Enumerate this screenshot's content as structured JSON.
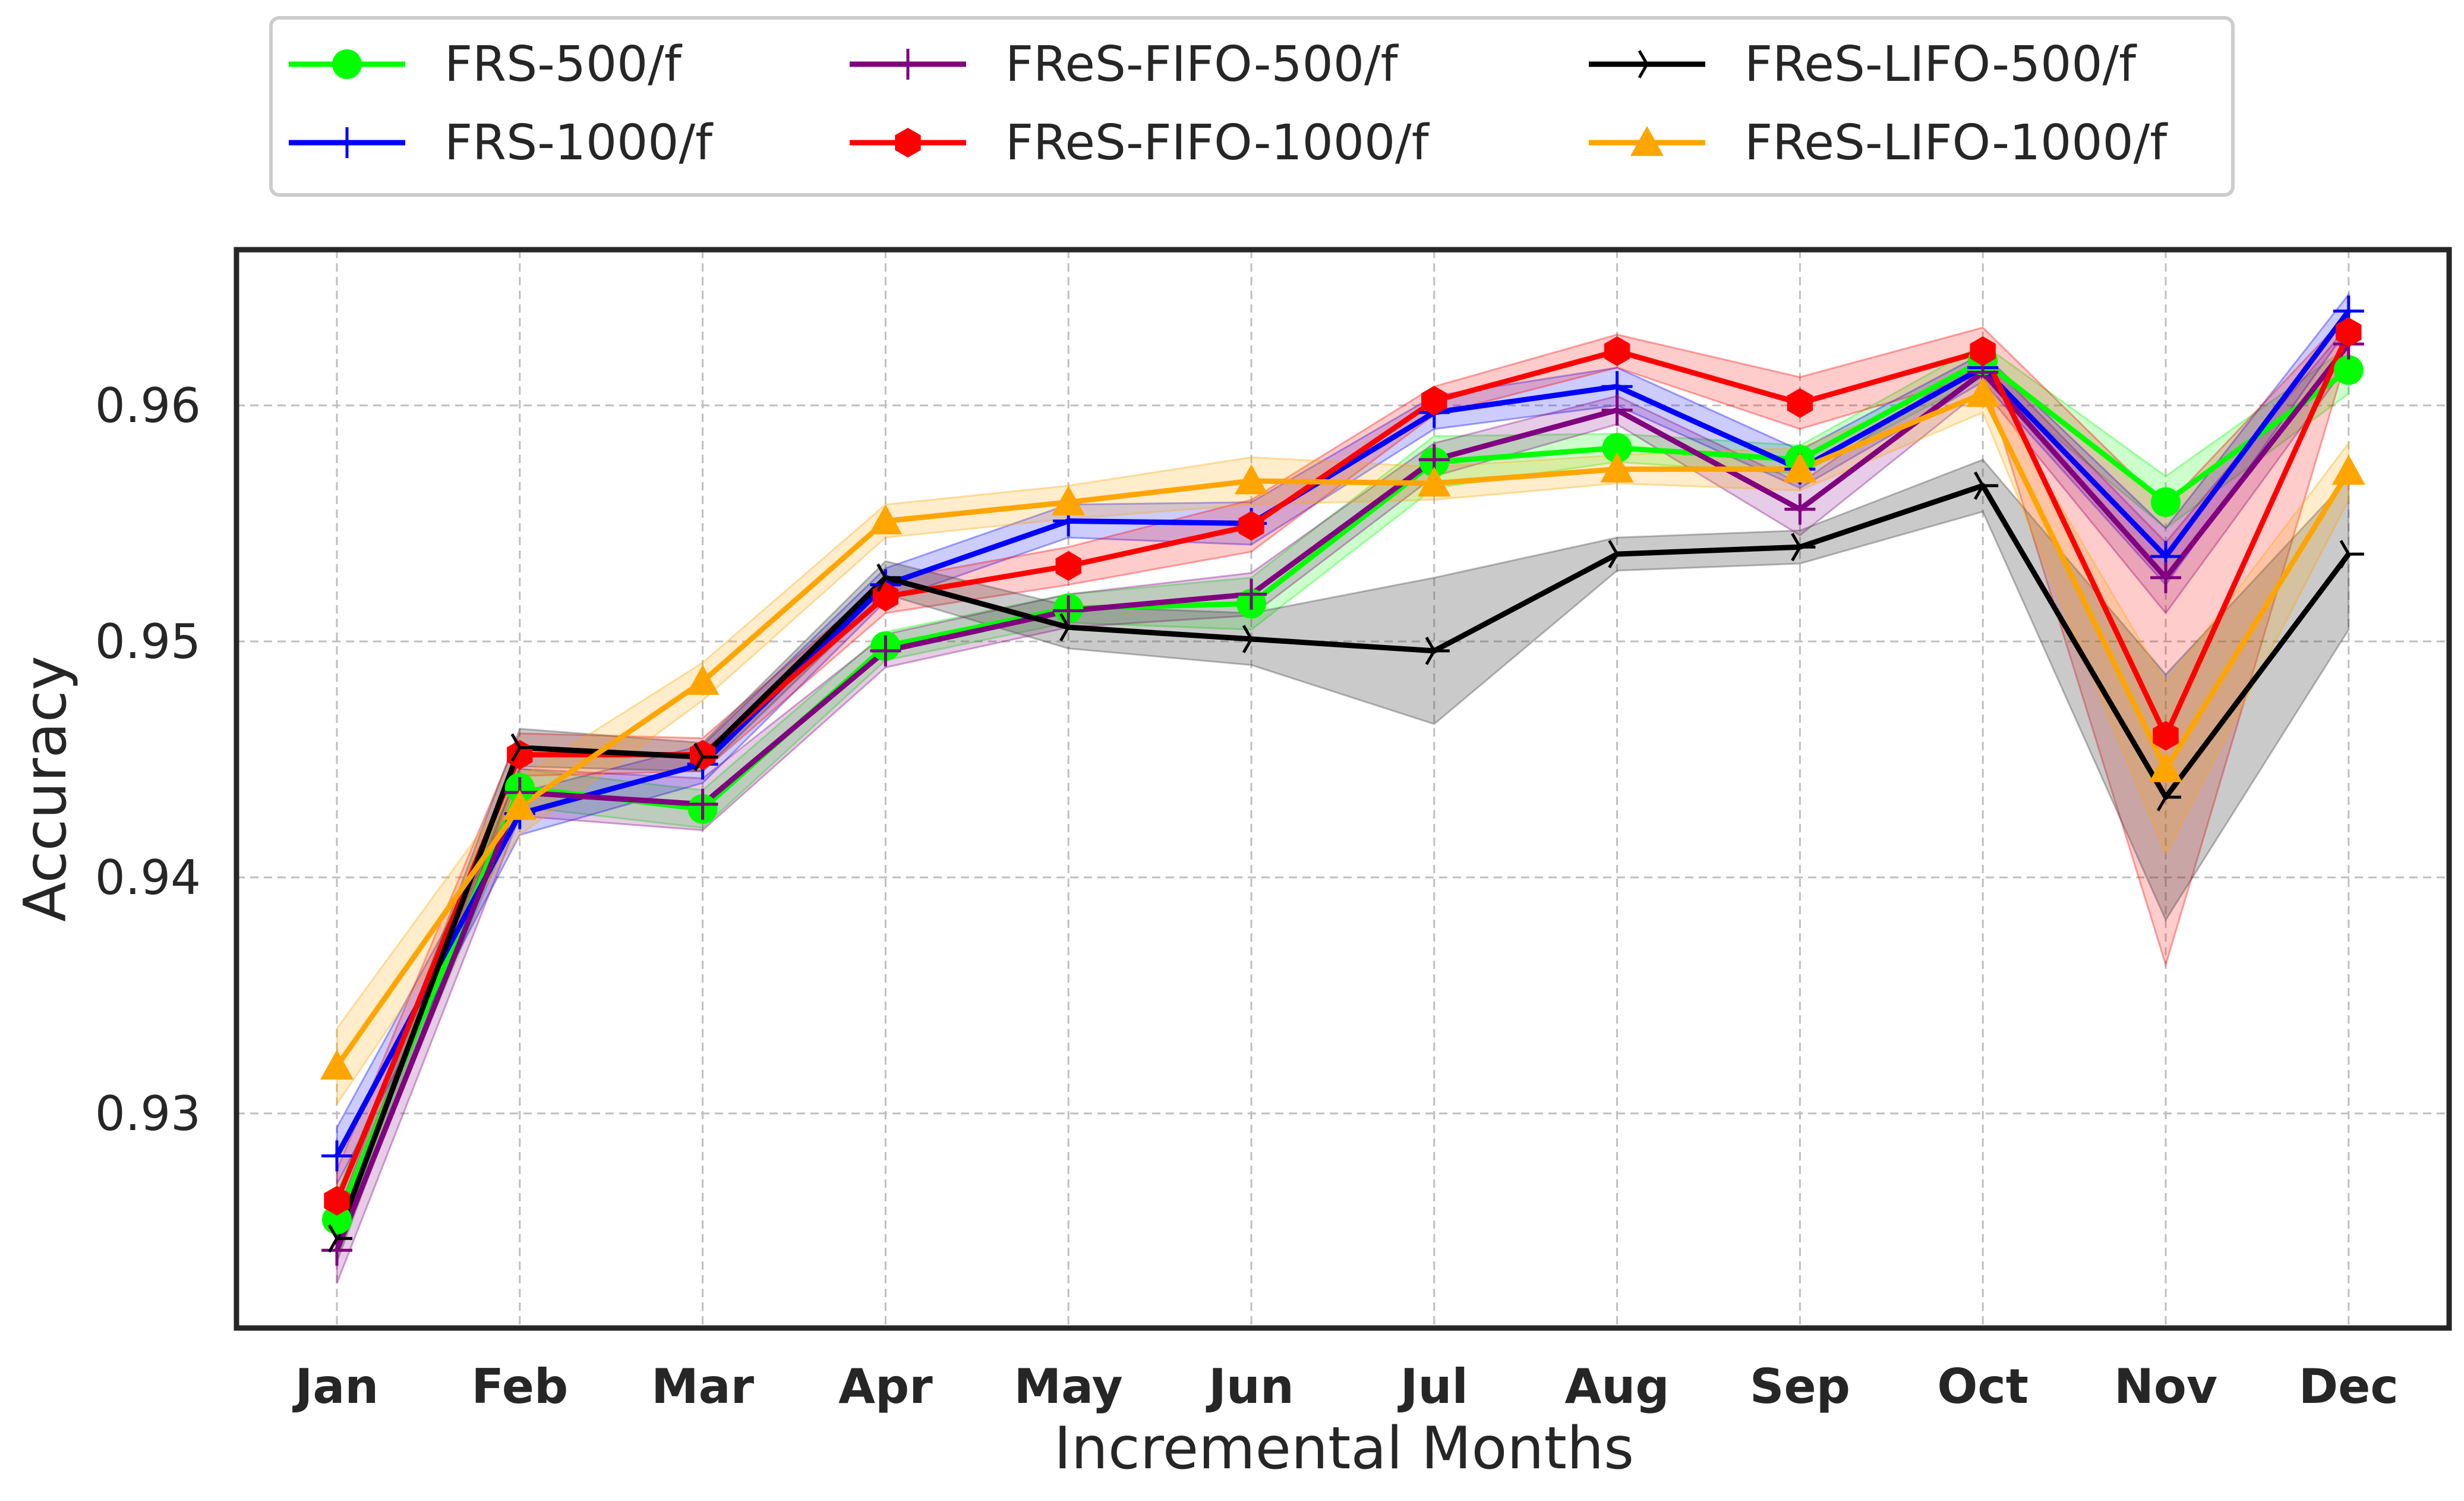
{
  "chart_data": {
    "type": "line",
    "title": "",
    "xlabel": "Incremental Months",
    "ylabel": "Accuracy",
    "categories": [
      "Jan",
      "Feb",
      "Mar",
      "Apr",
      "May",
      "Jun",
      "Jul",
      "Aug",
      "Sep",
      "Oct",
      "Nov",
      "Dec"
    ],
    "ylim": [
      0.9212,
      0.9662
    ],
    "yticks": [
      0.93,
      0.94,
      0.95,
      0.96
    ],
    "ytick_labels": [
      "0.93",
      "0.94",
      "0.95",
      "0.96"
    ],
    "grid": true,
    "legend_position": "top-center",
    "series": [
      {
        "name": "FRS-500/f",
        "color": "#00ff00",
        "marker": "circle",
        "values": [
          0.9255,
          0.9438,
          0.9429,
          0.9498,
          0.9514,
          0.9516,
          0.9576,
          0.9582,
          0.9577,
          0.9619,
          0.9559,
          0.9615
        ],
        "lower": [
          0.9243,
          0.943,
          0.9421,
          0.9492,
          0.9508,
          0.9505,
          0.9565,
          0.9576,
          0.9571,
          0.9612,
          0.9548,
          0.9605
        ],
        "upper": [
          0.9267,
          0.9446,
          0.9437,
          0.9504,
          0.952,
          0.9527,
          0.9587,
          0.9588,
          0.9583,
          0.9626,
          0.957,
          0.9625
        ]
      },
      {
        "name": "FRS-1000/f",
        "color": "#0000ff",
        "marker": "plus",
        "values": [
          0.9282,
          0.9427,
          0.9448,
          0.9524,
          0.9551,
          0.955,
          0.9597,
          0.9608,
          0.9573,
          0.9616,
          0.9536,
          0.964
        ],
        "lower": [
          0.927,
          0.9418,
          0.944,
          0.9517,
          0.9544,
          0.9541,
          0.959,
          0.96,
          0.9565,
          0.961,
          0.9524,
          0.9633
        ],
        "upper": [
          0.9294,
          0.9436,
          0.9456,
          0.9531,
          0.9558,
          0.9559,
          0.9604,
          0.9616,
          0.9581,
          0.9622,
          0.9548,
          0.9647
        ]
      },
      {
        "name": "FReS-FIFO-500/f",
        "color": "#800080",
        "marker": "plus",
        "values": [
          0.9242,
          0.9436,
          0.9431,
          0.9496,
          0.9513,
          0.952,
          0.9577,
          0.9598,
          0.9556,
          0.9614,
          0.9527,
          0.9626
        ],
        "lower": [
          0.9228,
          0.9426,
          0.942,
          0.9489,
          0.9506,
          0.9511,
          0.957,
          0.9592,
          0.9545,
          0.9607,
          0.9512,
          0.9618
        ],
        "upper": [
          0.9256,
          0.9446,
          0.9442,
          0.9503,
          0.952,
          0.9529,
          0.9584,
          0.9604,
          0.9567,
          0.9621,
          0.9542,
          0.9634
        ]
      },
      {
        "name": "FReS-FIFO-1000/f",
        "color": "#ff0000",
        "marker": "hexagon",
        "values": [
          0.9263,
          0.9452,
          0.9452,
          0.9519,
          0.9532,
          0.9549,
          0.9602,
          0.9623,
          0.9601,
          0.9623,
          0.946,
          0.9631
        ],
        "lower": [
          0.925,
          0.9443,
          0.9445,
          0.9512,
          0.9524,
          0.9538,
          0.9596,
          0.9616,
          0.959,
          0.9613,
          0.9363,
          0.9623
        ],
        "upper": [
          0.9276,
          0.9461,
          0.9459,
          0.9526,
          0.954,
          0.956,
          0.9608,
          0.963,
          0.9612,
          0.9633,
          0.9557,
          0.9639
        ]
      },
      {
        "name": "FReS-LIFO-500/f",
        "color": "#000000",
        "marker": "tri",
        "values": [
          0.9247,
          0.9455,
          0.9451,
          0.9527,
          0.9506,
          0.9501,
          0.9496,
          0.9537,
          0.954,
          0.9566,
          0.9434,
          0.9537
        ],
        "lower": [
          0.9237,
          0.9447,
          0.9445,
          0.952,
          0.9497,
          0.949,
          0.9465,
          0.953,
          0.9533,
          0.9555,
          0.9382,
          0.9505
        ],
        "upper": [
          0.9257,
          0.9463,
          0.9457,
          0.9534,
          0.9515,
          0.9512,
          0.9527,
          0.9544,
          0.9547,
          0.9577,
          0.9486,
          0.9569
        ]
      },
      {
        "name": "FReS-LIFO-1000/f",
        "color": "#ffa500",
        "marker": "triangle",
        "values": [
          0.932,
          0.943,
          0.9483,
          0.9551,
          0.9559,
          0.9568,
          0.9567,
          0.9573,
          0.9573,
          0.9605,
          0.9446,
          0.9572
        ],
        "lower": [
          0.9304,
          0.9418,
          0.9475,
          0.9544,
          0.9552,
          0.9558,
          0.956,
          0.9567,
          0.9564,
          0.9597,
          0.941,
          0.956
        ],
        "upper": [
          0.9336,
          0.9442,
          0.9491,
          0.9558,
          0.9566,
          0.9578,
          0.9574,
          0.9579,
          0.9582,
          0.9613,
          0.9482,
          0.9584
        ]
      }
    ]
  }
}
